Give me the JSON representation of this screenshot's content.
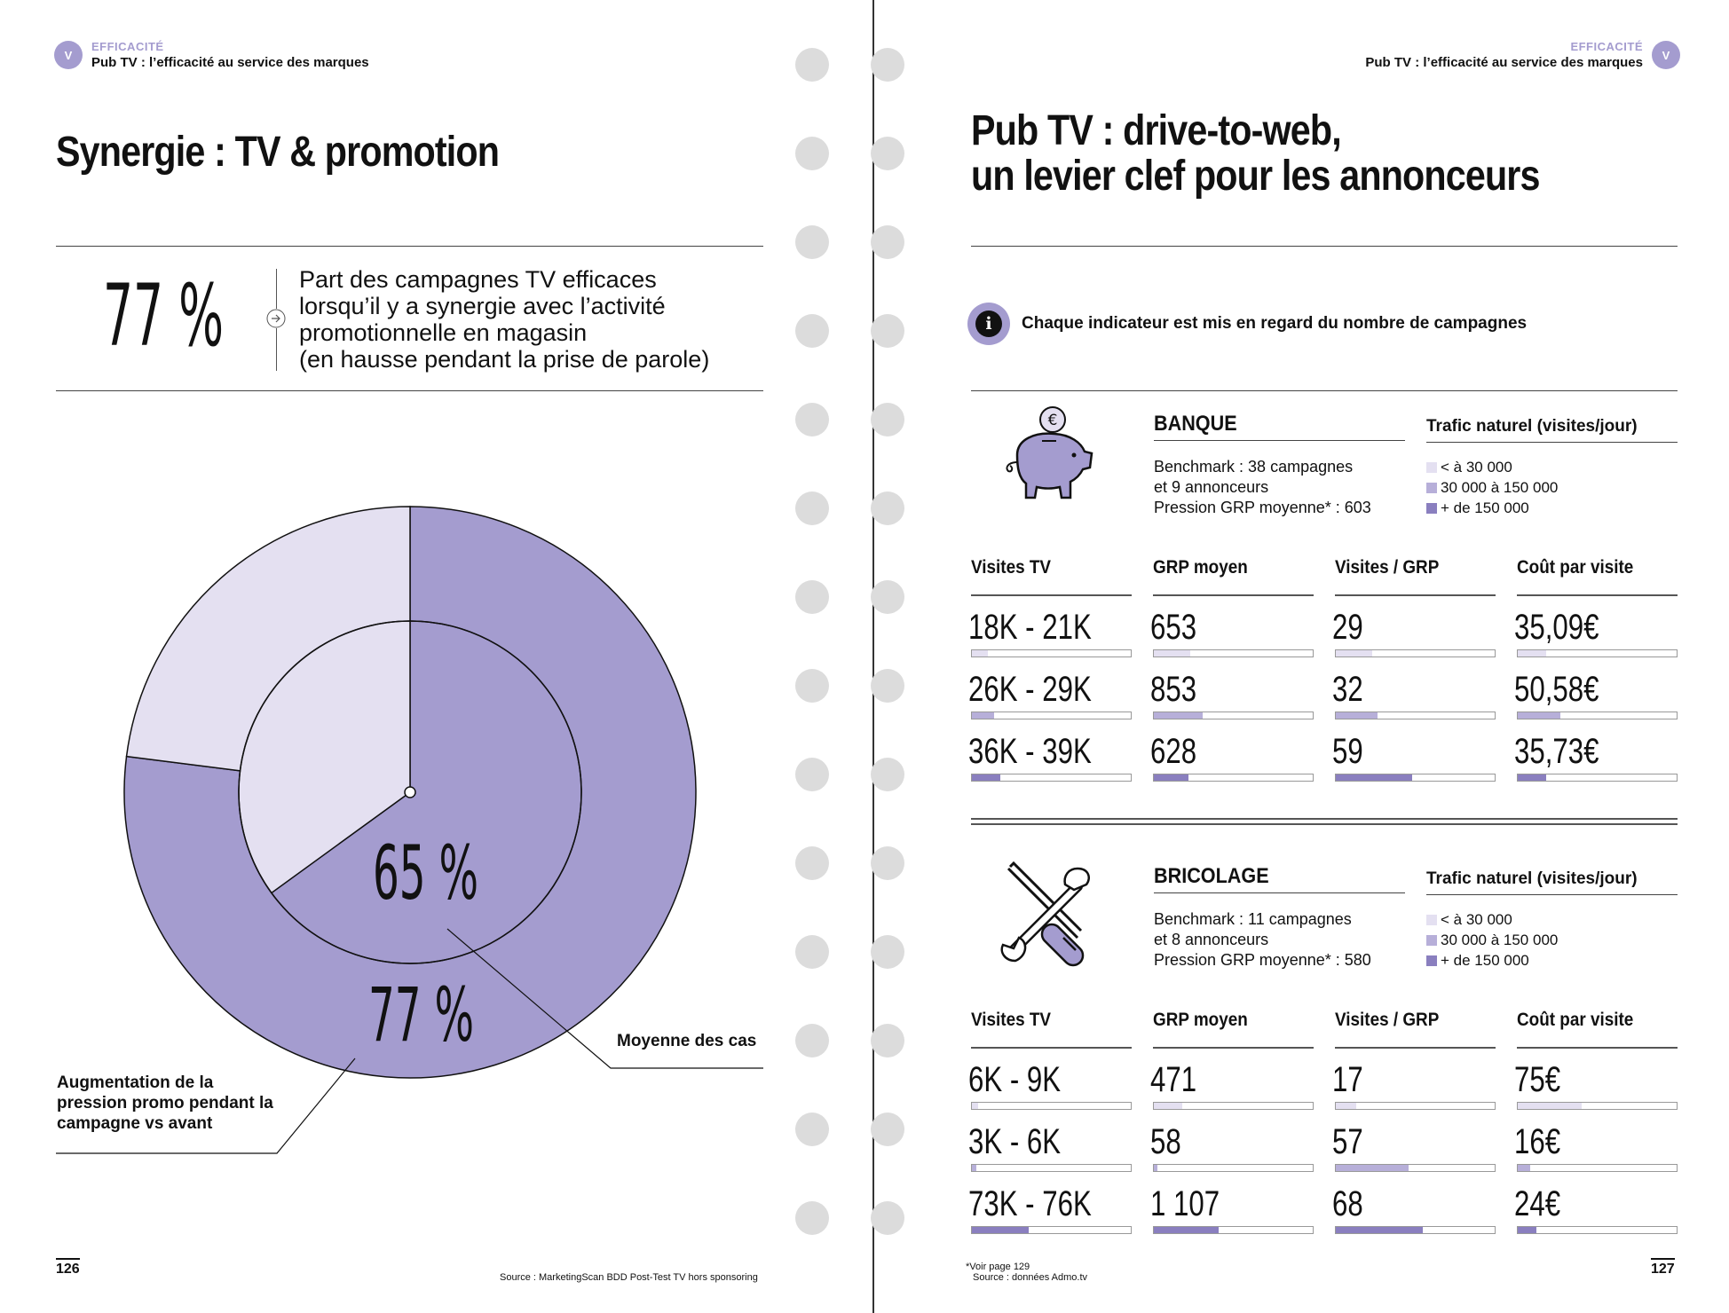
{
  "colors": {
    "accent": "#a49ccf",
    "light": "#e4e0f1",
    "mid": "#b7afd9",
    "dark": "#8a7fbf"
  },
  "left_page": {
    "badge": "V",
    "section": "EFFICACITÉ",
    "subtitle": "Pub TV : l’efficacité au service des marques",
    "title": "Synergie : TV & promotion",
    "stat_value": "77 %",
    "stat_text": [
      "Part des campagnes TV efficaces",
      "lorsqu’il y a synergie avec l’activité",
      "promotionnelle en magasin",
      "(en hausse pendant la prise de parole)"
    ],
    "page_number": "126",
    "source": "Source : MarketingScan BDD Post-Test TV hors sponsoring"
  },
  "chart_data": {
    "type": "pie",
    "series": [
      {
        "name": "Augmentation de la pression promo pendant la campagne vs avant",
        "values": [
          77,
          23
        ],
        "label": "77 %"
      },
      {
        "name": "Moyenne des cas",
        "values": [
          65,
          35
        ],
        "label": "65 %"
      }
    ],
    "annotations": [
      "Augmentation de la pression promo pendant la campagne vs avant",
      "Moyenne des cas"
    ]
  },
  "right_page": {
    "badge": "V",
    "section": "EFFICACITÉ",
    "subtitle": "Pub TV : l’efficacité au service des marques",
    "title_line1": "Pub TV : drive-to-web,",
    "title_line2": "un levier clef pour les annonceurs",
    "info_icon": "info-icon",
    "info_text": "Chaque indicateur est mis en regard du nombre de campagnes",
    "page_number": "127",
    "footnote": "*Voir page 129",
    "source": "Source : données Admo.tv",
    "columns": [
      "Visites TV",
      "GRP moyen",
      "Visites / GRP",
      "Coût par visite"
    ],
    "legend_title": "Trafic naturel (visites/jour)",
    "legend": [
      "< à 30 000",
      "30 000 à 150 000",
      "+ de 150 000"
    ],
    "categories": [
      {
        "name": "BANQUE",
        "icon": "piggy-bank-icon",
        "bench": [
          "Benchmark : 38 campagnes",
          "et 9 annonceurs",
          "Pression GRP moyenne* : 603"
        ],
        "rows": [
          {
            "level": 0,
            "cells": [
              {
                "v": "18K - 21K",
                "f": 0.1
              },
              {
                "v": "653",
                "f": 0.23
              },
              {
                "v": "29",
                "f": 0.23
              },
              {
                "v": "35,09€",
                "f": 0.18
              }
            ]
          },
          {
            "level": 1,
            "cells": [
              {
                "v": "26K - 29K",
                "f": 0.14
              },
              {
                "v": "853",
                "f": 0.31
              },
              {
                "v": "32",
                "f": 0.26
              },
              {
                "v": "50,58€",
                "f": 0.27
              }
            ]
          },
          {
            "level": 2,
            "cells": [
              {
                "v": "36K - 39K",
                "f": 0.18
              },
              {
                "v": "628",
                "f": 0.22
              },
              {
                "v": "59",
                "f": 0.48
              },
              {
                "v": "35,73€",
                "f": 0.18
              }
            ]
          }
        ]
      },
      {
        "name": "BRICOLAGE",
        "icon": "tools-icon",
        "bench": [
          "Benchmark : 11 campagnes",
          "et 8 annonceurs",
          "Pression GRP moyenne* : 580"
        ],
        "rows": [
          {
            "level": 0,
            "cells": [
              {
                "v": "6K - 9K",
                "f": 0.04
              },
              {
                "v": "471",
                "f": 0.18
              },
              {
                "v": "17",
                "f": 0.13
              },
              {
                "v": "75€",
                "f": 0.4
              }
            ]
          },
          {
            "level": 1,
            "cells": [
              {
                "v": "3K - 6K",
                "f": 0.03
              },
              {
                "v": "58",
                "f": 0.02
              },
              {
                "v": "57",
                "f": 0.46
              },
              {
                "v": "16€",
                "f": 0.08
              }
            ]
          },
          {
            "level": 2,
            "cells": [
              {
                "v": "73K - 76K",
                "f": 0.36
              },
              {
                "v": "1 107",
                "f": 0.41
              },
              {
                "v": "68",
                "f": 0.55
              },
              {
                "v": "24€",
                "f": 0.12
              }
            ]
          }
        ]
      }
    ]
  }
}
